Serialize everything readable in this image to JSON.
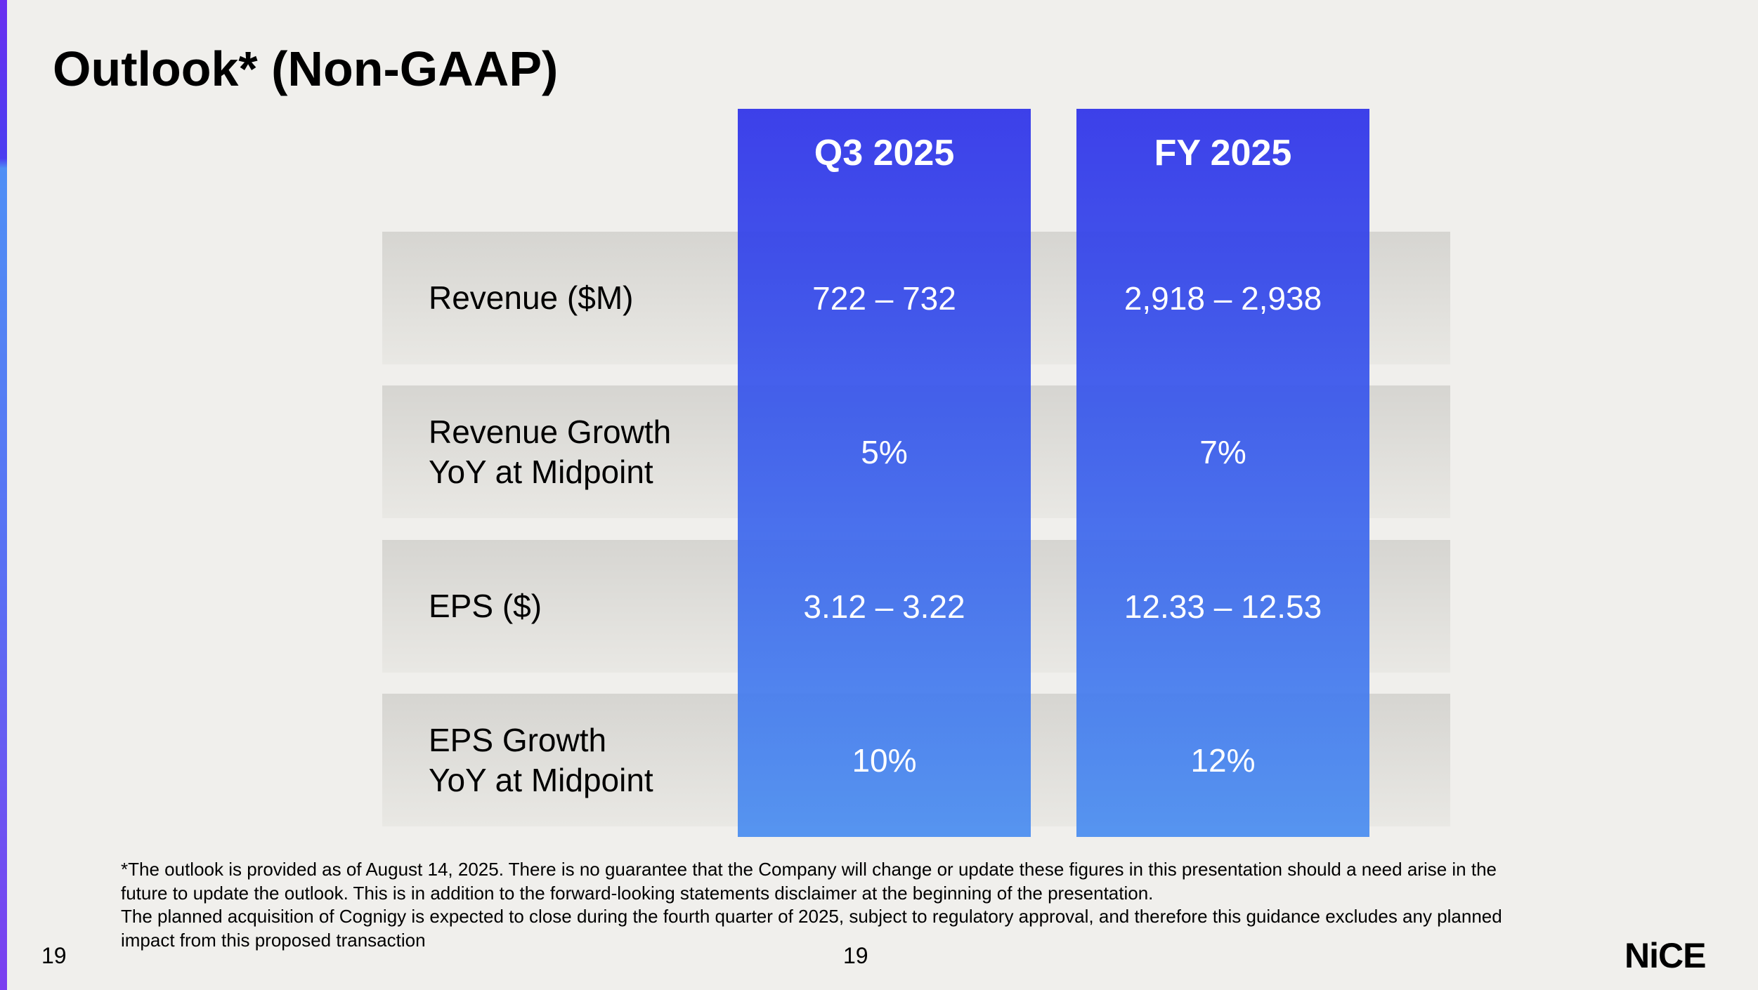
{
  "header": {
    "title": "Outlook* (Non-GAAP)"
  },
  "table": {
    "columns": [
      "Q3 2025",
      "FY 2025"
    ],
    "rows": [
      {
        "label": [
          "Revenue ($M)"
        ],
        "values": [
          "722 – 732",
          "2,918 – 2,938"
        ]
      },
      {
        "label": [
          "Revenue Growth",
          "YoY at Midpoint"
        ],
        "values": [
          "5%",
          "7%"
        ]
      },
      {
        "label": [
          "EPS ($)"
        ],
        "values": [
          "3.12 – 3.22",
          "12.33 – 12.53"
        ]
      },
      {
        "label": [
          "EPS Growth",
          "YoY at Midpoint"
        ],
        "values": [
          "10%",
          "12%"
        ]
      }
    ]
  },
  "footnote": [
    "*The outlook is provided as of August 14, 2025. There is no guarantee that the Company will change or update these figures in this presentation should a need arise in the",
    "future to update the outlook. This is in addition to the forward-looking statements disclaimer at the beginning of the presentation.",
    "The planned acquisition of Cognigy is expected to close during the fourth quarter of 2025, subject to regulatory approval, and therefore this guidance excludes any planned",
    "impact from this proposed transaction"
  ],
  "footer": {
    "page_left": "19",
    "page_center": "19",
    "logo": "NiCE"
  }
}
